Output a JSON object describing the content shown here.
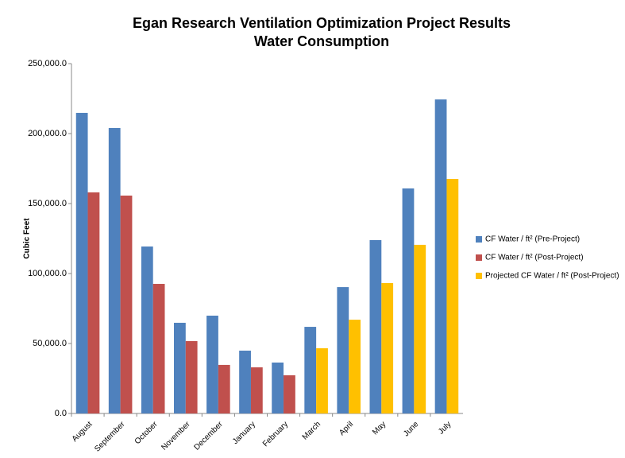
{
  "chart_data": {
    "type": "bar",
    "title": "Egan Research Ventilation Optimization Project Results",
    "subtitle": "Water Consumption",
    "y_label": "Cubic Feet",
    "categories": [
      "August",
      "September",
      "October",
      "November",
      "December",
      "January",
      "February",
      "March",
      "April",
      "May",
      "June",
      "July"
    ],
    "series": [
      {
        "name": "CF Water / ft² (Pre-Project)",
        "color": "#4f81bd",
        "values": [
          214800,
          204000,
          119300,
          64800,
          69900,
          44900,
          36400,
          61900,
          90300,
          123900,
          160800,
          224400
        ]
      },
      {
        "name": "CF Water / ft² (Post-Project)",
        "color": "#c0504d",
        "values": [
          158000,
          155700,
          92600,
          51700,
          34700,
          33000,
          27300,
          null,
          null,
          null,
          null,
          null
        ]
      },
      {
        "name": "Projected CF Water / ft² (Post-Project)",
        "color": "#ffc000",
        "values": [
          null,
          null,
          null,
          null,
          null,
          null,
          null,
          46600,
          67000,
          93200,
          120500,
          167600
        ]
      }
    ],
    "ylim": [
      0,
      250000
    ],
    "yticks": [
      {
        "value": 0,
        "label": "0.0"
      },
      {
        "value": 50000,
        "label": "50,000.0"
      },
      {
        "value": 100000,
        "label": "100,000.0"
      },
      {
        "value": 150000,
        "label": "150,000.0"
      },
      {
        "value": 200000,
        "label": "200,000.0"
      },
      {
        "value": 250000,
        "label": "250,000.0"
      }
    ],
    "legend": "right"
  }
}
